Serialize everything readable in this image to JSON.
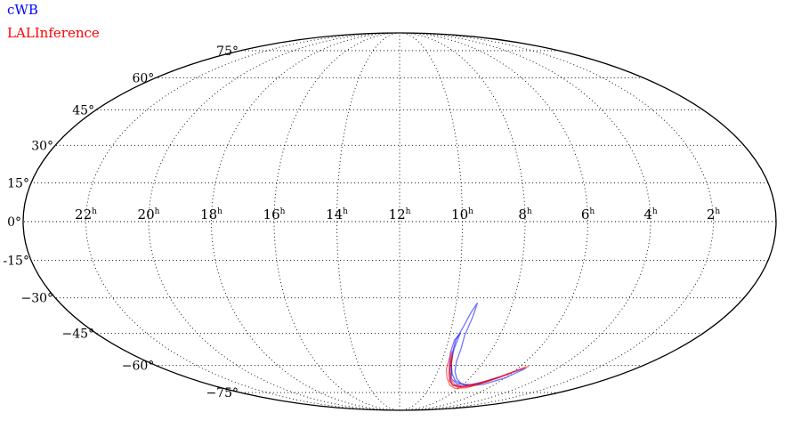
{
  "chart_data": {
    "type": "skymap",
    "projection": "mollweide",
    "legend": [
      {
        "name": "cWB",
        "color": "#0000ff"
      },
      {
        "name": "LALInference",
        "color": "#ff0000"
      }
    ],
    "ra_ticks": [
      {
        "ra_hours": 22,
        "label": "22",
        "sup": "h"
      },
      {
        "ra_hours": 20,
        "label": "20",
        "sup": "h"
      },
      {
        "ra_hours": 18,
        "label": "18",
        "sup": "h"
      },
      {
        "ra_hours": 16,
        "label": "16",
        "sup": "h"
      },
      {
        "ra_hours": 14,
        "label": "14",
        "sup": "h"
      },
      {
        "ra_hours": 12,
        "label": "12",
        "sup": "h"
      },
      {
        "ra_hours": 10,
        "label": "10",
        "sup": "h"
      },
      {
        "ra_hours": 8,
        "label": "8",
        "sup": "h"
      },
      {
        "ra_hours": 6,
        "label": "6",
        "sup": "h"
      },
      {
        "ra_hours": 4,
        "label": "4",
        "sup": "h"
      },
      {
        "ra_hours": 2,
        "label": "2",
        "sup": "h"
      }
    ],
    "dec_ticks": [
      {
        "dec": 75,
        "label": "75°"
      },
      {
        "dec": 60,
        "label": "60°"
      },
      {
        "dec": 45,
        "label": "45°"
      },
      {
        "dec": 30,
        "label": "30°"
      },
      {
        "dec": 15,
        "label": "15°"
      },
      {
        "dec": 0,
        "label": "0°"
      },
      {
        "dec": -15,
        "label": "-15°"
      },
      {
        "dec": -30,
        "label": "−30°"
      },
      {
        "dec": -45,
        "label": "−45°"
      },
      {
        "dec": -60,
        "label": "−60°"
      },
      {
        "dec": -75,
        "label": "−75°"
      }
    ],
    "grid": true,
    "series": [
      {
        "name": "cWB",
        "color": "#0000ff",
        "contours": [
          [
            [
              9.25,
              -32
            ],
            [
              9.3,
              -38
            ],
            [
              9.4,
              -46
            ],
            [
              9.35,
              -52
            ],
            [
              9.3,
              -58
            ],
            [
              9.1,
              -63
            ],
            [
              8.7,
              -67
            ],
            [
              8.2,
              -69.5
            ],
            [
              7.5,
              -71
            ],
            [
              6.7,
              -70
            ],
            [
              6.0,
              -66.5
            ],
            [
              5.6,
              -61.5
            ],
            [
              5.8,
              -62
            ],
            [
              6.4,
              -66.5
            ],
            [
              7.2,
              -70.2
            ],
            [
              7.9,
              -71.3
            ],
            [
              8.6,
              -70.5
            ],
            [
              9.0,
              -68
            ],
            [
              9.2,
              -64
            ],
            [
              9.5,
              -59
            ],
            [
              9.65,
              -54
            ],
            [
              9.7,
              -48
            ],
            [
              9.55,
              -42
            ],
            [
              9.4,
              -36
            ],
            [
              9.25,
              -32
            ]
          ],
          [
            [
              9.6,
              -45
            ],
            [
              9.65,
              -52
            ],
            [
              9.55,
              -58
            ],
            [
              9.2,
              -64
            ],
            [
              8.7,
              -68
            ],
            [
              8.1,
              -70
            ],
            [
              7.4,
              -70.2
            ],
            [
              6.8,
              -68.5
            ],
            [
              6.4,
              -66
            ],
            [
              6.9,
              -68.5
            ],
            [
              7.6,
              -70.4
            ],
            [
              8.4,
              -69.8
            ],
            [
              9.0,
              -67
            ],
            [
              9.5,
              -61
            ],
            [
              9.75,
              -54
            ],
            [
              9.75,
              -48
            ],
            [
              9.6,
              -45
            ]
          ]
        ]
      },
      {
        "name": "LALInference",
        "color": "#ff0000",
        "contours": [
          [
            [
              9.7,
              -53
            ],
            [
              9.7,
              -57
            ],
            [
              9.6,
              -62
            ],
            [
              9.3,
              -66.5
            ],
            [
              8.8,
              -70.5
            ],
            [
              8.2,
              -72.5
            ],
            [
              7.5,
              -72
            ],
            [
              6.8,
              -69
            ],
            [
              6.2,
              -65
            ],
            [
              5.6,
              -60.5
            ],
            [
              5.75,
              -61
            ],
            [
              6.4,
              -66
            ],
            [
              7.2,
              -70.2
            ],
            [
              8.0,
              -71.7
            ],
            [
              8.6,
              -70.6
            ],
            [
              9.05,
              -68
            ],
            [
              9.35,
              -64
            ],
            [
              9.55,
              -59
            ],
            [
              9.7,
              -53
            ]
          ],
          [
            [
              9.6,
              -55
            ],
            [
              9.55,
              -60
            ],
            [
              9.25,
              -65.5
            ],
            [
              8.7,
              -70
            ],
            [
              8.1,
              -71.8
            ],
            [
              7.4,
              -71.3
            ],
            [
              6.7,
              -68.2
            ],
            [
              6.1,
              -64
            ],
            [
              6.3,
              -65.5
            ],
            [
              7.1,
              -69.5
            ],
            [
              7.9,
              -71.2
            ],
            [
              8.5,
              -70.2
            ],
            [
              9.0,
              -67.5
            ],
            [
              9.35,
              -63
            ],
            [
              9.6,
              -55
            ]
          ]
        ]
      }
    ]
  }
}
